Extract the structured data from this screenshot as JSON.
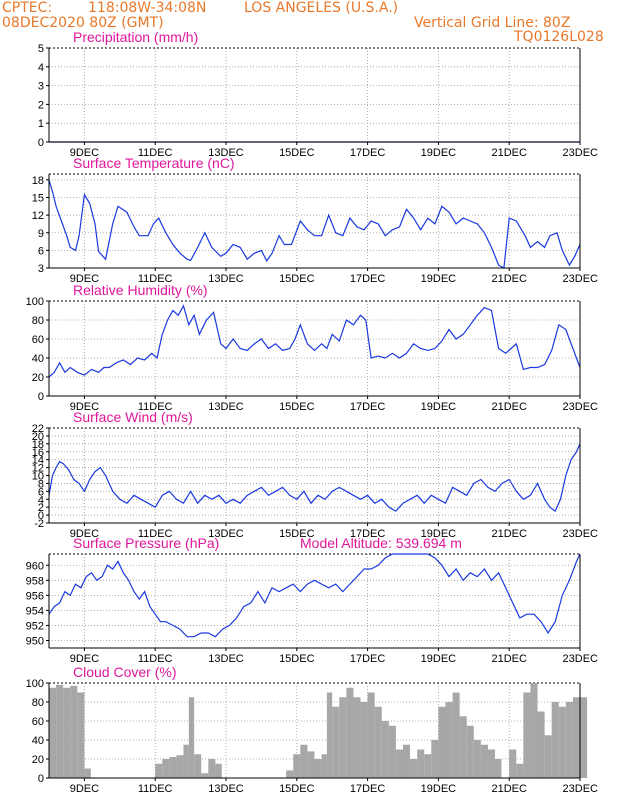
{
  "header": {
    "source": "CPTEC:",
    "coords": "118:08W-34:08N",
    "location": "LOS ANGELES (U.S.A.)",
    "date": "08DEC2020 80Z (GMT)",
    "grid_line": "Vertical Grid Line: 80Z",
    "code": "TQ0126L028"
  },
  "colors": {
    "header": "#e8782a",
    "panel_title": "#e0179b",
    "line": "#1a39e0",
    "bar": "#a7a7a7",
    "axis": "#000000",
    "grid": "#9a9a9a"
  },
  "x_axis": {
    "ticks": [
      "9DEC",
      "11DEC",
      "13DEC",
      "15DEC",
      "17DEC",
      "19DEC",
      "21DEC",
      "23DEC"
    ],
    "tick_days": [
      9,
      11,
      13,
      15,
      17,
      19,
      21,
      23
    ],
    "range_days": [
      8,
      23
    ]
  },
  "chart_data": [
    {
      "type": "line",
      "title": "Precipitation (mm/h)",
      "ylim": [
        0,
        5
      ],
      "yticks": [
        0,
        1,
        2,
        3,
        4,
        5
      ],
      "grid": true,
      "x": [
        8,
        23
      ],
      "values": [
        0,
        0
      ]
    },
    {
      "type": "line",
      "title": "Surface Temperature (nC)",
      "ylim": [
        3,
        19
      ],
      "yticks": [
        3,
        6,
        9,
        12,
        15,
        18
      ],
      "grid": true,
      "x": [
        8.0,
        8.1,
        8.2,
        8.35,
        8.5,
        8.6,
        8.75,
        8.85,
        9.0,
        9.15,
        9.3,
        9.4,
        9.6,
        9.8,
        9.95,
        10.2,
        10.4,
        10.55,
        10.8,
        10.95,
        11.1,
        11.3,
        11.5,
        11.7,
        11.9,
        12.0,
        12.2,
        12.4,
        12.6,
        12.85,
        13.0,
        13.2,
        13.4,
        13.6,
        13.8,
        14.0,
        14.15,
        14.3,
        14.5,
        14.65,
        14.85,
        15.1,
        15.3,
        15.5,
        15.7,
        15.9,
        16.1,
        16.3,
        16.5,
        16.7,
        16.9,
        17.1,
        17.3,
        17.5,
        17.7,
        17.9,
        18.1,
        18.3,
        18.5,
        18.7,
        18.9,
        19.1,
        19.3,
        19.5,
        19.7,
        19.9,
        20.1,
        20.3,
        20.5,
        20.7,
        20.85,
        21.0,
        21.2,
        21.45,
        21.6,
        21.8,
        22.0,
        22.15,
        22.35,
        22.5,
        22.7,
        22.85,
        23.0
      ],
      "values": [
        18,
        16,
        13.5,
        11,
        8.5,
        6.5,
        6,
        8.5,
        15.5,
        14,
        10.5,
        5.8,
        4.5,
        10.5,
        13.5,
        12.5,
        10,
        8.5,
        8.5,
        10.5,
        11.5,
        9,
        7,
        5.5,
        4.5,
        4.3,
        6.5,
        9,
        6.5,
        5,
        5.5,
        7,
        6.5,
        4.5,
        5.5,
        6,
        4.2,
        5.5,
        8.5,
        7,
        7,
        11,
        9.5,
        8.5,
        8.5,
        12,
        9,
        8.5,
        11.5,
        10,
        9.5,
        11,
        10.5,
        8.5,
        9.5,
        10,
        13,
        11.5,
        9.5,
        11.5,
        10.5,
        13.5,
        12.5,
        10.5,
        11.5,
        11,
        10.5,
        9,
        6.5,
        3.5,
        2.5,
        11.5,
        11,
        8.5,
        6.5,
        7.5,
        6.5,
        8.5,
        9,
        6,
        3.5,
        5,
        7
      ]
    },
    {
      "type": "line",
      "title": "Relative Humidity (%)",
      "ylim": [
        0,
        100
      ],
      "yticks": [
        0,
        20,
        40,
        60,
        80,
        100
      ],
      "grid": true,
      "x": [
        8.0,
        8.15,
        8.3,
        8.45,
        8.6,
        8.8,
        9.0,
        9.2,
        9.4,
        9.55,
        9.7,
        9.9,
        10.1,
        10.3,
        10.5,
        10.7,
        10.9,
        11.05,
        11.2,
        11.35,
        11.5,
        11.65,
        11.8,
        11.95,
        12.1,
        12.25,
        12.45,
        12.65,
        12.85,
        13.0,
        13.2,
        13.4,
        13.6,
        13.8,
        14.0,
        14.2,
        14.4,
        14.6,
        14.8,
        14.95,
        15.1,
        15.3,
        15.5,
        15.7,
        15.85,
        16.0,
        16.2,
        16.4,
        16.6,
        16.8,
        16.95,
        17.1,
        17.3,
        17.5,
        17.7,
        17.9,
        18.1,
        18.3,
        18.5,
        18.7,
        18.9,
        19.1,
        19.3,
        19.5,
        19.7,
        19.9,
        20.1,
        20.3,
        20.5,
        20.7,
        20.9,
        21.05,
        21.2,
        21.4,
        21.6,
        21.8,
        22.0,
        22.2,
        22.4,
        22.6,
        22.8,
        23.0
      ],
      "values": [
        20,
        25,
        35,
        25,
        30,
        25,
        22,
        28,
        25,
        30,
        30,
        35,
        38,
        33,
        40,
        38,
        45,
        40,
        65,
        80,
        90,
        85,
        95,
        75,
        85,
        65,
        80,
        88,
        55,
        50,
        60,
        50,
        48,
        55,
        60,
        50,
        55,
        48,
        50,
        60,
        75,
        55,
        48,
        55,
        50,
        65,
        58,
        80,
        75,
        85,
        80,
        40,
        42,
        40,
        45,
        40,
        45,
        55,
        50,
        48,
        50,
        58,
        70,
        60,
        65,
        75,
        85,
        93,
        90,
        50,
        45,
        50,
        55,
        28,
        30,
        30,
        33,
        48,
        75,
        70,
        50,
        30
      ]
    },
    {
      "type": "line",
      "title": "Surface Wind (m/s)",
      "ylim": [
        -2,
        22
      ],
      "yticks": [
        -2,
        0,
        2,
        4,
        6,
        8,
        10,
        12,
        14,
        16,
        18,
        20,
        22
      ],
      "grid": true,
      "x": [
        8.0,
        8.1,
        8.2,
        8.3,
        8.4,
        8.55,
        8.7,
        8.85,
        9.0,
        9.15,
        9.3,
        9.45,
        9.6,
        9.8,
        10.0,
        10.2,
        10.4,
        10.6,
        10.8,
        11.0,
        11.2,
        11.4,
        11.6,
        11.8,
        12.0,
        12.2,
        12.4,
        12.6,
        12.8,
        13.0,
        13.2,
        13.4,
        13.6,
        13.8,
        14.0,
        14.2,
        14.4,
        14.6,
        14.8,
        15.0,
        15.2,
        15.4,
        15.6,
        15.8,
        16.0,
        16.2,
        16.4,
        16.6,
        16.8,
        17.0,
        17.2,
        17.4,
        17.6,
        17.8,
        18.0,
        18.2,
        18.4,
        18.6,
        18.8,
        19.0,
        19.2,
        19.4,
        19.6,
        19.8,
        20.0,
        20.2,
        20.4,
        20.6,
        20.8,
        21.0,
        21.2,
        21.4,
        21.6,
        21.8,
        22.0,
        22.15,
        22.3,
        22.45,
        22.6,
        22.75,
        22.9,
        23.0
      ],
      "values": [
        5,
        10,
        12,
        13.5,
        13,
        11.5,
        9,
        8,
        6,
        9,
        11,
        12,
        10,
        6,
        4,
        3,
        5,
        4,
        3,
        2,
        5,
        6,
        4,
        3,
        6,
        3,
        5,
        4,
        5,
        3,
        4,
        3,
        5,
        6,
        7,
        5,
        6,
        7,
        5,
        4,
        6,
        3,
        5,
        4,
        6,
        7,
        6,
        5,
        4,
        5,
        3,
        4,
        2,
        1,
        3,
        4,
        5,
        3,
        5,
        4,
        3,
        7,
        6,
        5,
        8,
        9,
        7,
        6,
        8,
        9,
        6,
        4,
        5,
        8,
        4,
        2,
        1,
        4,
        10,
        14,
        16,
        18
      ]
    },
    {
      "type": "line",
      "title": "Surface Pressure (hPa)",
      "subtitle": "Model Altitude: 539.694 m",
      "ylim": [
        949,
        961.5
      ],
      "yticks": [
        950,
        952,
        954,
        956,
        958,
        960
      ],
      "grid": true,
      "x": [
        8.0,
        8.15,
        8.3,
        8.45,
        8.6,
        8.75,
        8.9,
        9.05,
        9.2,
        9.35,
        9.5,
        9.65,
        9.8,
        9.95,
        10.1,
        10.25,
        10.4,
        10.55,
        10.7,
        10.85,
        11.0,
        11.15,
        11.3,
        11.5,
        11.7,
        11.9,
        12.1,
        12.3,
        12.5,
        12.7,
        12.9,
        13.1,
        13.3,
        13.5,
        13.7,
        13.9,
        14.1,
        14.3,
        14.5,
        14.7,
        14.9,
        15.1,
        15.3,
        15.5,
        15.7,
        15.9,
        16.1,
        16.3,
        16.5,
        16.7,
        16.9,
        17.1,
        17.3,
        17.5,
        17.7,
        17.9,
        18.1,
        18.3,
        18.5,
        18.7,
        18.9,
        19.1,
        19.3,
        19.5,
        19.7,
        19.9,
        20.1,
        20.3,
        20.5,
        20.7,
        20.9,
        21.1,
        21.3,
        21.5,
        21.7,
        21.9,
        22.1,
        22.3,
        22.5,
        22.7,
        22.9,
        23.0
      ],
      "values": [
        953.5,
        954.5,
        955,
        956.5,
        956,
        957.5,
        957,
        958.5,
        959,
        958,
        958.5,
        960,
        959.5,
        960.5,
        959,
        958,
        956.5,
        955.5,
        956.5,
        954.5,
        953.5,
        952.5,
        952.5,
        952,
        951.5,
        950.5,
        950.5,
        951,
        951,
        950.5,
        951.5,
        952,
        953,
        954.5,
        955,
        956.5,
        955,
        957,
        956.5,
        957,
        957.5,
        956.5,
        957.5,
        958,
        957.5,
        957,
        957.5,
        956.5,
        957.5,
        958.5,
        959.5,
        959.5,
        960,
        961,
        961.5,
        961.5,
        961.5,
        961.5,
        961.5,
        961.5,
        961,
        960,
        958.5,
        959.5,
        958,
        959,
        958.5,
        959.5,
        958,
        959,
        957,
        955,
        953,
        953.5,
        953.5,
        952.5,
        951,
        952.5,
        956,
        958,
        960.5,
        962
      ]
    },
    {
      "type": "bar",
      "title": "Cloud Cover (%)",
      "ylim": [
        0,
        100
      ],
      "yticks": [
        0,
        20,
        40,
        60,
        80,
        100
      ],
      "grid": true,
      "bar_width_days": 0.06,
      "x": [
        8.0,
        8.2,
        8.4,
        8.6,
        8.8,
        9.0,
        11.0,
        11.2,
        11.4,
        11.6,
        11.8,
        11.95,
        12.1,
        12.3,
        12.5,
        12.7,
        14.7,
        14.9,
        15.1,
        15.3,
        15.5,
        15.7,
        15.85,
        16.0,
        16.2,
        16.4,
        16.6,
        16.8,
        17.0,
        17.2,
        17.4,
        17.6,
        17.8,
        18.0,
        18.2,
        18.4,
        18.6,
        18.8,
        19.0,
        19.2,
        19.4,
        19.6,
        19.8,
        20.0,
        20.2,
        20.4,
        20.6,
        21.0,
        21.2,
        21.4,
        21.6,
        21.8,
        22.0,
        22.2,
        22.4,
        22.6,
        22.8,
        23.0
      ],
      "values": [
        95,
        98,
        95,
        97,
        90,
        10,
        15,
        20,
        22,
        24,
        35,
        85,
        25,
        5,
        20,
        15,
        8,
        25,
        35,
        28,
        20,
        25,
        90,
        75,
        85,
        95,
        85,
        80,
        90,
        75,
        60,
        55,
        30,
        35,
        20,
        30,
        25,
        40,
        75,
        80,
        90,
        65,
        55,
        40,
        35,
        30,
        20,
        30,
        15,
        90,
        100,
        70,
        45,
        80,
        75,
        80,
        85,
        85
      ]
    }
  ]
}
